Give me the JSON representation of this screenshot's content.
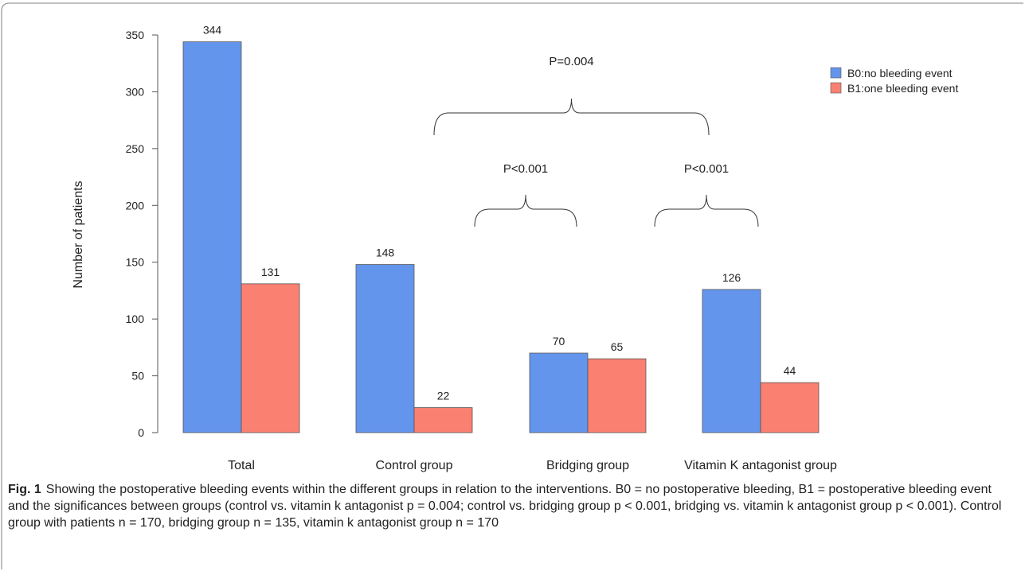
{
  "chart_data": {
    "type": "bar",
    "title": "",
    "xlabel": "",
    "ylabel": "Number of patients",
    "ylim": [
      0,
      350
    ],
    "yticks": [
      "0",
      "50",
      "100",
      "150",
      "200",
      "250",
      "300",
      "350"
    ],
    "yticks_values": [
      0,
      50,
      100,
      150,
      200,
      250,
      300,
      350
    ],
    "categories": [
      "Total",
      "Control group",
      "Bridging group",
      "Vitamin K antagonist group"
    ],
    "series": [
      {
        "name": "B0:no bleeding event",
        "color": "#6495ED",
        "values": [
          344,
          148,
          70,
          126
        ],
        "labels": [
          "344",
          "148",
          "70",
          "126"
        ]
      },
      {
        "name": "B1:one bleeding event",
        "color": "#FA8072",
        "values": [
          131,
          22,
          65,
          44
        ],
        "labels": [
          "131",
          "22",
          "65",
          "44"
        ]
      }
    ],
    "legend_position": "top-right",
    "annotations": [
      {
        "text": "P=0.004",
        "from": "Control group",
        "to": "Vitamin K antagonist group"
      },
      {
        "text": "P<0.001",
        "from": "Bridging group",
        "to": "Bridging group"
      },
      {
        "text": "P<0.001",
        "from": "Vitamin K antagonist group",
        "to": "Vitamin K antagonist group"
      }
    ]
  },
  "caption": {
    "label": "Fig. 1",
    "text": "Showing the postoperative bleeding events within the different groups in relation to the interventions. B0 = no postoperative bleeding, B1 = postoperative bleeding event and the significances between groups (control vs. vitamin k antagonist p = 0.004; control vs. bridging group p < 0.001, bridging vs. vitamin k antagonist group p < 0.001). Control group with patients n = 170, bridging group n = 135, vitamin k antagonist group n = 170"
  }
}
